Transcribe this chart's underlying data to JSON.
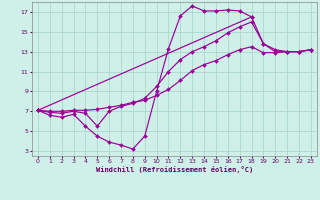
{
  "xlabel": "Windchill (Refroidissement éolien,°C)",
  "bg_color": "#cff0e8",
  "grid_color": "#aad8cc",
  "line_color": "#990099",
  "xlim": [
    -0.5,
    23.5
  ],
  "ylim": [
    2.5,
    18.0
  ],
  "xticks": [
    0,
    1,
    2,
    3,
    4,
    5,
    6,
    7,
    8,
    9,
    10,
    11,
    12,
    13,
    14,
    15,
    16,
    17,
    18,
    19,
    20,
    21,
    22,
    23
  ],
  "yticks": [
    3,
    5,
    7,
    9,
    11,
    13,
    15,
    17
  ],
  "line1_x": [
    0,
    1,
    2,
    3,
    4,
    5,
    6,
    7,
    8,
    9,
    10,
    11,
    12,
    13,
    14,
    15,
    16,
    17,
    18,
    19,
    20,
    21,
    22,
    23
  ],
  "line1_y": [
    7.1,
    6.6,
    6.4,
    6.7,
    5.5,
    4.5,
    3.9,
    3.6,
    3.2,
    4.5,
    9.0,
    13.3,
    16.6,
    17.6,
    17.1,
    17.1,
    17.2,
    17.1,
    16.5,
    null,
    null,
    null,
    null,
    null
  ],
  "line2_x": [
    0,
    1,
    2,
    3,
    4,
    5,
    6,
    7,
    8,
    9,
    10,
    11,
    12,
    13,
    14,
    15,
    16,
    17,
    18,
    19,
    20,
    21,
    22,
    23
  ],
  "line2_y": [
    7.1,
    null,
    null,
    null,
    null,
    null,
    null,
    null,
    null,
    null,
    null,
    null,
    null,
    null,
    null,
    null,
    null,
    null,
    16.5,
    13.8,
    13.0,
    13.0,
    13.0,
    13.2
  ],
  "line3_x": [
    0,
    1,
    2,
    3,
    4,
    5,
    6,
    7,
    8,
    9,
    10,
    11,
    12,
    13,
    14,
    15,
    16,
    17,
    18,
    19,
    20,
    21,
    22,
    23
  ],
  "line3_y": [
    7.1,
    6.9,
    6.8,
    7.0,
    6.8,
    5.5,
    7.0,
    7.5,
    7.8,
    8.3,
    9.5,
    11.0,
    12.2,
    13.0,
    13.5,
    14.1,
    14.9,
    15.5,
    16.0,
    13.8,
    13.2,
    13.0,
    13.0,
    13.2
  ],
  "line4_x": [
    0,
    1,
    2,
    3,
    4,
    5,
    6,
    7,
    8,
    9,
    10,
    11,
    12,
    13,
    14,
    15,
    16,
    17,
    18,
    19,
    20,
    21,
    22,
    23
  ],
  "line4_y": [
    7.1,
    7.0,
    7.0,
    7.1,
    7.1,
    7.2,
    7.4,
    7.6,
    7.9,
    8.1,
    8.6,
    9.2,
    10.1,
    11.1,
    11.7,
    12.1,
    12.7,
    13.2,
    13.5,
    12.9,
    12.9,
    13.0,
    13.0,
    13.2
  ]
}
